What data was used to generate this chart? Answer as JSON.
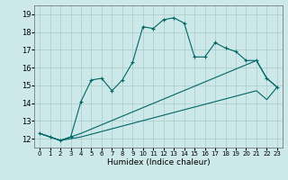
{
  "xlabel": "Humidex (Indice chaleur)",
  "background_color": "#cce8e8",
  "grid_color": "#aacccc",
  "line_color": "#006666",
  "ylim": [
    11.5,
    19.5
  ],
  "xlim": [
    -0.5,
    23.5
  ],
  "yticks": [
    12,
    13,
    14,
    15,
    16,
    17,
    18,
    19
  ],
  "xticks": [
    0,
    1,
    2,
    3,
    4,
    5,
    6,
    7,
    8,
    9,
    10,
    11,
    12,
    13,
    14,
    15,
    16,
    17,
    18,
    19,
    20,
    21,
    22,
    23
  ],
  "line1_x": [
    0,
    1,
    2,
    3,
    4,
    5,
    6,
    7,
    8,
    9,
    10,
    11,
    12,
    13,
    14,
    15,
    16,
    17,
    18,
    19,
    20,
    21,
    22,
    23
  ],
  "line1_y": [
    12.3,
    12.1,
    11.9,
    12.1,
    14.1,
    15.3,
    15.4,
    14.7,
    15.3,
    16.3,
    18.3,
    18.2,
    18.7,
    18.8,
    18.5,
    16.6,
    16.6,
    17.4,
    17.1,
    16.9,
    16.4,
    16.4,
    15.4,
    14.9
  ],
  "line2_x": [
    0,
    2,
    3,
    4,
    21,
    22,
    23
  ],
  "line2_y": [
    12.3,
    11.9,
    12.1,
    12.3,
    16.4,
    15.4,
    14.9
  ],
  "line3_x": [
    0,
    2,
    3,
    4,
    21,
    22,
    23
  ],
  "line3_y": [
    12.3,
    11.9,
    12.0,
    12.1,
    14.7,
    14.2,
    14.9
  ]
}
